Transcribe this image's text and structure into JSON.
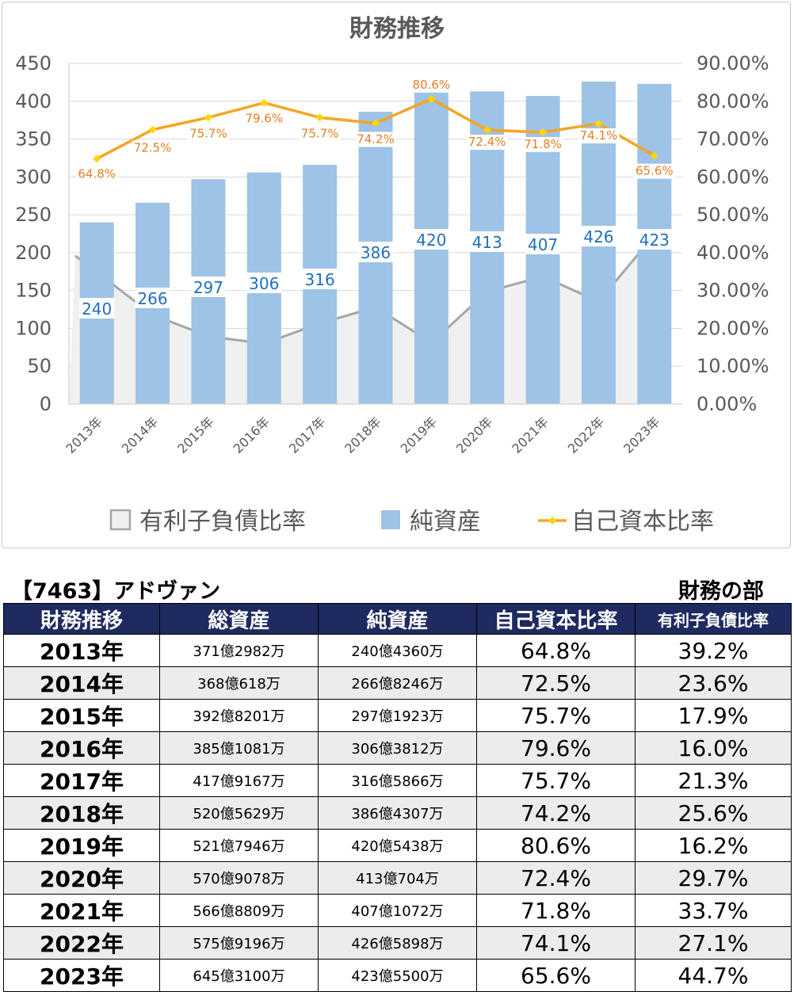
{
  "chart_data": {
    "type": "bar+line+area",
    "title": "財務推移",
    "categories": [
      "2013年",
      "2014年",
      "2015年",
      "2016年",
      "2017年",
      "2018年",
      "2019年",
      "2020年",
      "2021年",
      "2022年",
      "2023年"
    ],
    "y_left": {
      "ylim": [
        0,
        450
      ],
      "ticks": [
        "0",
        "50",
        "100",
        "150",
        "200",
        "250",
        "300",
        "350",
        "400",
        "450"
      ]
    },
    "y_right": {
      "ylim": [
        0,
        0.9
      ],
      "ticks": [
        "0.00%",
        "10.00%",
        "20.00%",
        "30.00%",
        "40.00%",
        "50.00%",
        "60.00%",
        "70.00%",
        "80.00%",
        "90.00%"
      ]
    },
    "series": [
      {
        "name": "有利子負債比率",
        "type": "area",
        "axis": "right",
        "color": "#a6a6a6",
        "fill": "#f0f0f0",
        "values": [
          39.2,
          23.6,
          17.9,
          16.0,
          21.3,
          25.6,
          16.2,
          29.7,
          33.7,
          27.1,
          44.7
        ]
      },
      {
        "name": "純資産",
        "type": "bar",
        "axis": "left",
        "color": "#9dc3e6",
        "values": [
          240,
          266,
          297,
          306,
          316,
          386,
          420,
          413,
          407,
          426,
          423
        ],
        "labels": [
          "240",
          "266",
          "297",
          "306",
          "316",
          "386",
          "420",
          "413",
          "407",
          "426",
          "423"
        ]
      },
      {
        "name": "自己資本比率",
        "type": "line",
        "axis": "right",
        "color": "#f5a623",
        "marker_color": "#ffd700",
        "values": [
          64.8,
          72.5,
          75.7,
          79.6,
          75.7,
          74.2,
          80.6,
          72.4,
          71.8,
          74.1,
          65.6
        ],
        "labels": [
          "64.8%",
          "72.5%",
          "75.7%",
          "79.6%",
          "75.7%",
          "74.2%",
          "80.6%",
          "72.4%",
          "71.8%",
          "74.1%",
          "65.6%"
        ]
      }
    ],
    "legend": [
      "有利子負債比率",
      "純資産",
      "自己資本比率"
    ],
    "legend_position": "bottom"
  },
  "company": "【7463】アドヴァン",
  "section": "財務の部",
  "table": {
    "headers": [
      "財務推移",
      "総資産",
      "純資産",
      "自己資本比率",
      "有利子負債比率"
    ],
    "rows": [
      [
        "2013年",
        "371億2982万",
        "240億4360万",
        "64.8%",
        "39.2%"
      ],
      [
        "2014年",
        "368億618万",
        "266億8246万",
        "72.5%",
        "23.6%"
      ],
      [
        "2015年",
        "392億8201万",
        "297億1923万",
        "75.7%",
        "17.9%"
      ],
      [
        "2016年",
        "385億1081万",
        "306億3812万",
        "79.6%",
        "16.0%"
      ],
      [
        "2017年",
        "417億9167万",
        "316億5866万",
        "75.7%",
        "21.3%"
      ],
      [
        "2018年",
        "520億5629万",
        "386億4307万",
        "74.2%",
        "25.6%"
      ],
      [
        "2019年",
        "521億7946万",
        "420億5438万",
        "80.6%",
        "16.2%"
      ],
      [
        "2020年",
        "570億9078万",
        "413億704万",
        "72.4%",
        "29.7%"
      ],
      [
        "2021年",
        "566億8809万",
        "407億1072万",
        "71.8%",
        "33.7%"
      ],
      [
        "2022年",
        "575億9196万",
        "426億5898万",
        "74.1%",
        "27.1%"
      ],
      [
        "2023年",
        "645億3100万",
        "423億5500万",
        "65.6%",
        "44.7%"
      ]
    ]
  }
}
